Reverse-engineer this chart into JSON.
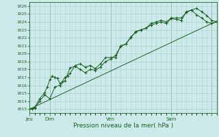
{
  "background_color": "#cdeaea",
  "grid_color": "#b0d0d0",
  "line_color": "#1a6020",
  "title": "Pression niveau de la mer( hPa )",
  "ylabel_values": [
    1013,
    1014,
    1015,
    1016,
    1017,
    1018,
    1019,
    1020,
    1021,
    1022,
    1023,
    1024,
    1025,
    1026
  ],
  "ylim": [
    1012.5,
    1026.5
  ],
  "xlim": [
    0,
    222
  ],
  "day_positions": [
    0,
    24,
    96,
    168,
    216
  ],
  "day_labels": [
    "Jeu",
    "Dim",
    "Ven",
    "Sam"
  ],
  "series1": [
    [
      0,
      1013.0
    ],
    [
      3,
      1013.0
    ],
    [
      6,
      1013.2
    ],
    [
      12,
      1014.3
    ],
    [
      18,
      1015.1
    ],
    [
      21,
      1015.8
    ],
    [
      24,
      1016.7
    ],
    [
      27,
      1017.2
    ],
    [
      30,
      1017.0
    ],
    [
      33,
      1016.9
    ],
    [
      36,
      1016.2
    ],
    [
      39,
      1016.5
    ],
    [
      42,
      1017.0
    ],
    [
      45,
      1017.2
    ],
    [
      48,
      1017.5
    ],
    [
      54,
      1018.5
    ],
    [
      60,
      1018.7
    ],
    [
      66,
      1018.3
    ],
    [
      72,
      1018.5
    ],
    [
      78,
      1018.1
    ],
    [
      84,
      1018.7
    ],
    [
      90,
      1019.5
    ],
    [
      96,
      1019.5
    ],
    [
      102,
      1019.5
    ],
    [
      108,
      1021.0
    ],
    [
      114,
      1021.2
    ],
    [
      120,
      1022.0
    ],
    [
      126,
      1022.8
    ],
    [
      132,
      1023.0
    ],
    [
      138,
      1023.2
    ],
    [
      144,
      1023.8
    ],
    [
      150,
      1024.0
    ],
    [
      156,
      1024.2
    ],
    [
      162,
      1024.0
    ],
    [
      168,
      1024.5
    ],
    [
      174,
      1024.5
    ],
    [
      180,
      1024.5
    ],
    [
      186,
      1025.2
    ],
    [
      192,
      1025.5
    ],
    [
      198,
      1025.7
    ],
    [
      204,
      1025.3
    ],
    [
      210,
      1024.8
    ],
    [
      216,
      1024.2
    ],
    [
      222,
      1024.0
    ]
  ],
  "series2": [
    [
      0,
      1013.0
    ],
    [
      6,
      1013.1
    ],
    [
      12,
      1014.0
    ],
    [
      18,
      1014.8
    ],
    [
      24,
      1014.3
    ],
    [
      30,
      1015.8
    ],
    [
      36,
      1016.0
    ],
    [
      42,
      1016.6
    ],
    [
      48,
      1018.2
    ],
    [
      54,
      1018.4
    ],
    [
      60,
      1018.0
    ],
    [
      66,
      1017.6
    ],
    [
      72,
      1018.0
    ],
    [
      78,
      1017.9
    ],
    [
      84,
      1018.3
    ],
    [
      90,
      1019.0
    ],
    [
      96,
      1019.3
    ],
    [
      102,
      1019.8
    ],
    [
      108,
      1020.9
    ],
    [
      114,
      1021.2
    ],
    [
      120,
      1022.1
    ],
    [
      126,
      1022.7
    ],
    [
      132,
      1023.0
    ],
    [
      138,
      1023.2
    ],
    [
      144,
      1023.6
    ],
    [
      150,
      1023.8
    ],
    [
      156,
      1024.0
    ],
    [
      162,
      1023.8
    ],
    [
      168,
      1024.4
    ],
    [
      174,
      1024.3
    ],
    [
      180,
      1024.2
    ],
    [
      186,
      1025.3
    ],
    [
      192,
      1025.5
    ],
    [
      198,
      1024.9
    ],
    [
      204,
      1024.5
    ],
    [
      210,
      1024.0
    ],
    [
      216,
      1023.8
    ],
    [
      222,
      1024.0
    ]
  ],
  "series3": [
    [
      0,
      1013.0
    ],
    [
      222,
      1024.1
    ]
  ]
}
